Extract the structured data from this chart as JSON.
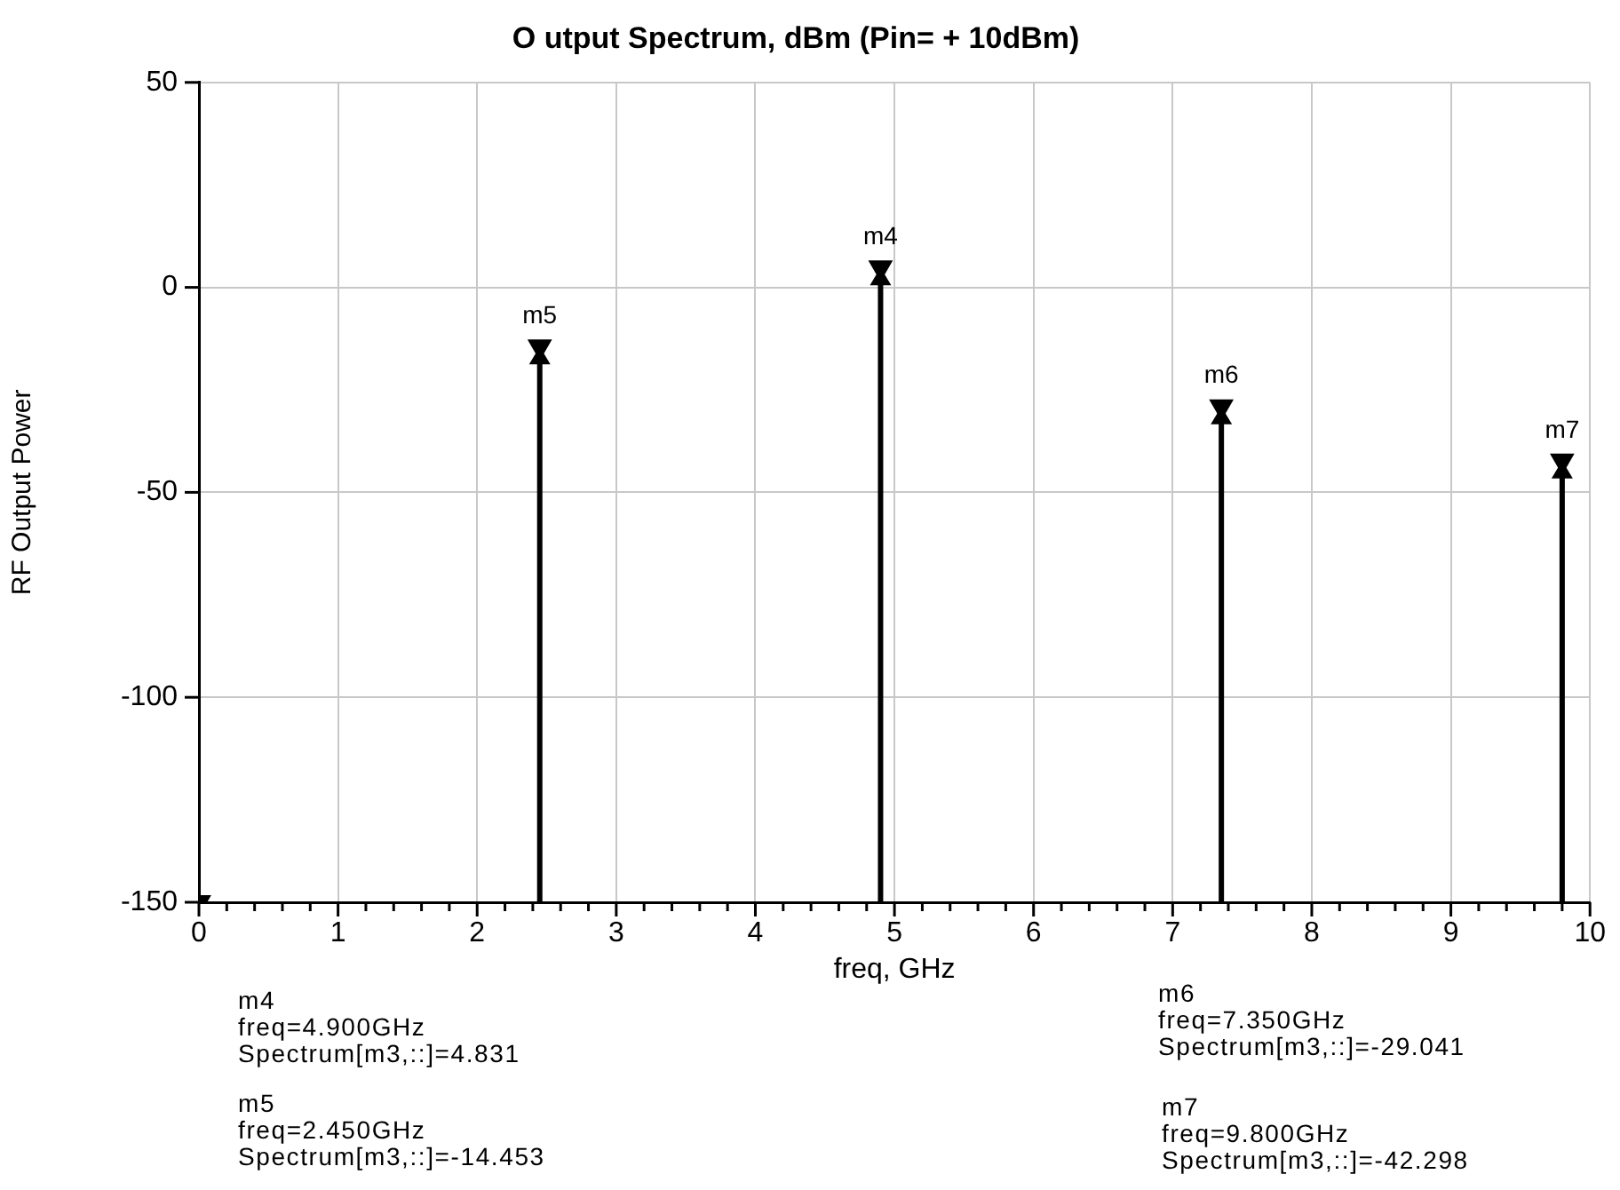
{
  "chart_data": {
    "type": "lollipop",
    "title": "O utput Spectrum, dBm (Pin= + 10dBm)",
    "xlabel": "freq, GHz",
    "ylabel": "RF Output Power",
    "x": [
      0,
      2.45,
      4.9,
      7.35,
      9.8
    ],
    "series": [
      {
        "color": "#000000",
        "values": [
          -150,
          -14.453,
          4.831,
          -29.041,
          -42.298
        ]
      }
    ],
    "xlim": [
      0,
      10
    ],
    "xticks": [
      0,
      {
        "value": 0.2,
        "label": null
      },
      {
        "value": 0.4,
        "label": null
      },
      {
        "value": 0.6,
        "label": null
      },
      {
        "value": 0.8,
        "label": null
      },
      1,
      {
        "value": 1.2,
        "label": null
      },
      {
        "value": 1.4,
        "label": null
      },
      {
        "value": 1.6,
        "label": null
      },
      {
        "value": 1.8,
        "label": null
      },
      2,
      {
        "value": 2.2,
        "label": null
      },
      {
        "value": 2.4,
        "label": null
      },
      {
        "value": 2.6,
        "label": null
      },
      {
        "value": 2.8,
        "label": null
      },
      3,
      {
        "value": 3.2,
        "label": null
      },
      {
        "value": 3.4,
        "label": null
      },
      {
        "value": 3.6,
        "label": null
      },
      {
        "value": 3.8,
        "label": null
      },
      4,
      {
        "value": 4.2,
        "label": null
      },
      {
        "value": 4.4,
        "label": null
      },
      {
        "value": 4.6,
        "label": null
      },
      {
        "value": 4.8,
        "label": null
      },
      5,
      {
        "value": 5.2,
        "label": null
      },
      {
        "value": 5.4,
        "label": null
      },
      {
        "value": 5.6,
        "label": null
      },
      {
        "value": 5.8,
        "label": null
      },
      6,
      {
        "value": 6.2,
        "label": null
      },
      {
        "value": 6.4,
        "label": null
      },
      {
        "value": 6.6,
        "label": null
      },
      {
        "value": 6.8,
        "label": null
      },
      7,
      {
        "value": 7.2,
        "label": null
      },
      {
        "value": 7.4,
        "label": null
      },
      {
        "value": 7.6,
        "label": null
      },
      {
        "value": 7.8,
        "label": null
      },
      8,
      {
        "value": 8.2,
        "label": null
      },
      {
        "value": 8.4,
        "label": null
      },
      {
        "value": 8.6,
        "label": null
      },
      {
        "value": 8.8,
        "label": null
      },
      9,
      {
        "value": 9.2,
        "label": null
      },
      {
        "value": 9.4,
        "label": null
      },
      {
        "value": 9.6,
        "label": null
      },
      {
        "value": 9.8,
        "label": null
      },
      10
    ],
    "ylim": [
      -150,
      50
    ],
    "yticks": [
      -150,
      -100,
      -50,
      0,
      50
    ],
    "grid": true,
    "marker": "triangle",
    "legend": false,
    "annotations": [
      {
        "text": "m5",
        "x": 2.45,
        "y": -14.453
      },
      {
        "text": "m4",
        "x": 4.9,
        "y": 4.831
      },
      {
        "text": "m6",
        "x": 7.35,
        "y": -29.041
      },
      {
        "text": "m7",
        "x": 9.8,
        "y": -42.298
      },
      "m4\nfreq=4.900GHz\nSpectrum[m3,::]=4.831",
      "m5\nfreq=2.450GHz\nSpectrum[m3,::]=-14.453",
      "m6\nfreq=7.350GHz\nSpectrum[m3,::]=-29.041",
      "m7\nfreq=9.800GHz\nSpectrum[m3,::]=-42.298"
    ]
  }
}
